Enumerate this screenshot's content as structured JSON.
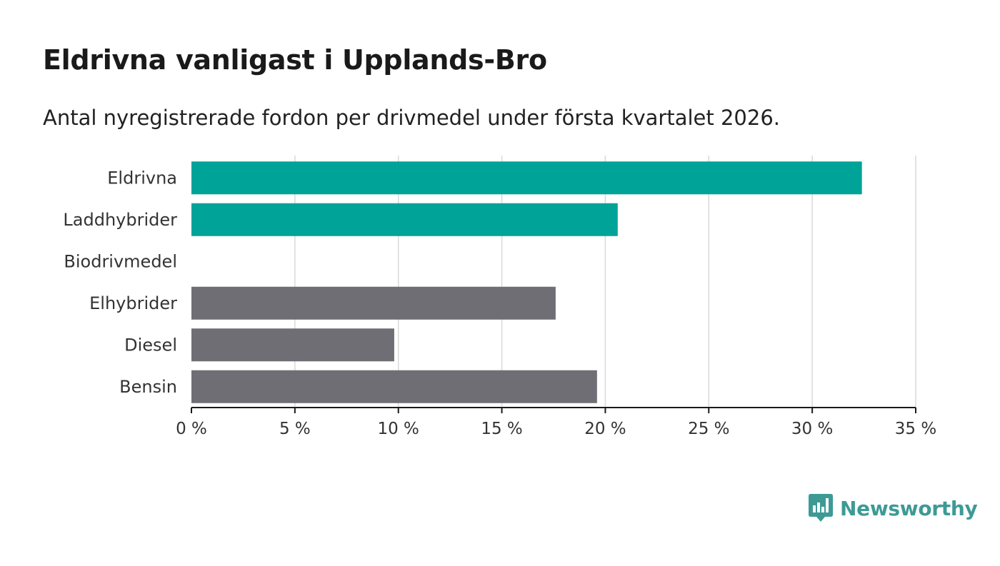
{
  "title": "Eldrivna vanligast i Upplands-Bro",
  "subtitle": "Antal nyregistrerade fordon per drivmedel under första kvartalet 2026.",
  "brand": {
    "name": "Newsworthy",
    "icon": "newsworthy-logo-icon",
    "color": "#3d9a95"
  },
  "colors": {
    "highlight": "#00a398",
    "default": "#6f6e75",
    "grid": "#d9d9d9",
    "axis": "#1a1a1a"
  },
  "chart_data": {
    "type": "bar",
    "orientation": "horizontal",
    "categories": [
      "Eldrivna",
      "Laddhybrider",
      "Biodrivmedel",
      "Elhybrider",
      "Diesel",
      "Bensin"
    ],
    "values": [
      32.4,
      20.6,
      0,
      17.6,
      9.8,
      19.6
    ],
    "highlighted": [
      true,
      true,
      false,
      false,
      false,
      false
    ],
    "xlim": [
      0,
      35
    ],
    "xticks": [
      0,
      5,
      10,
      15,
      20,
      25,
      30,
      35
    ],
    "tick_suffix": " %",
    "grid": true,
    "xlabel": "",
    "ylabel": ""
  }
}
